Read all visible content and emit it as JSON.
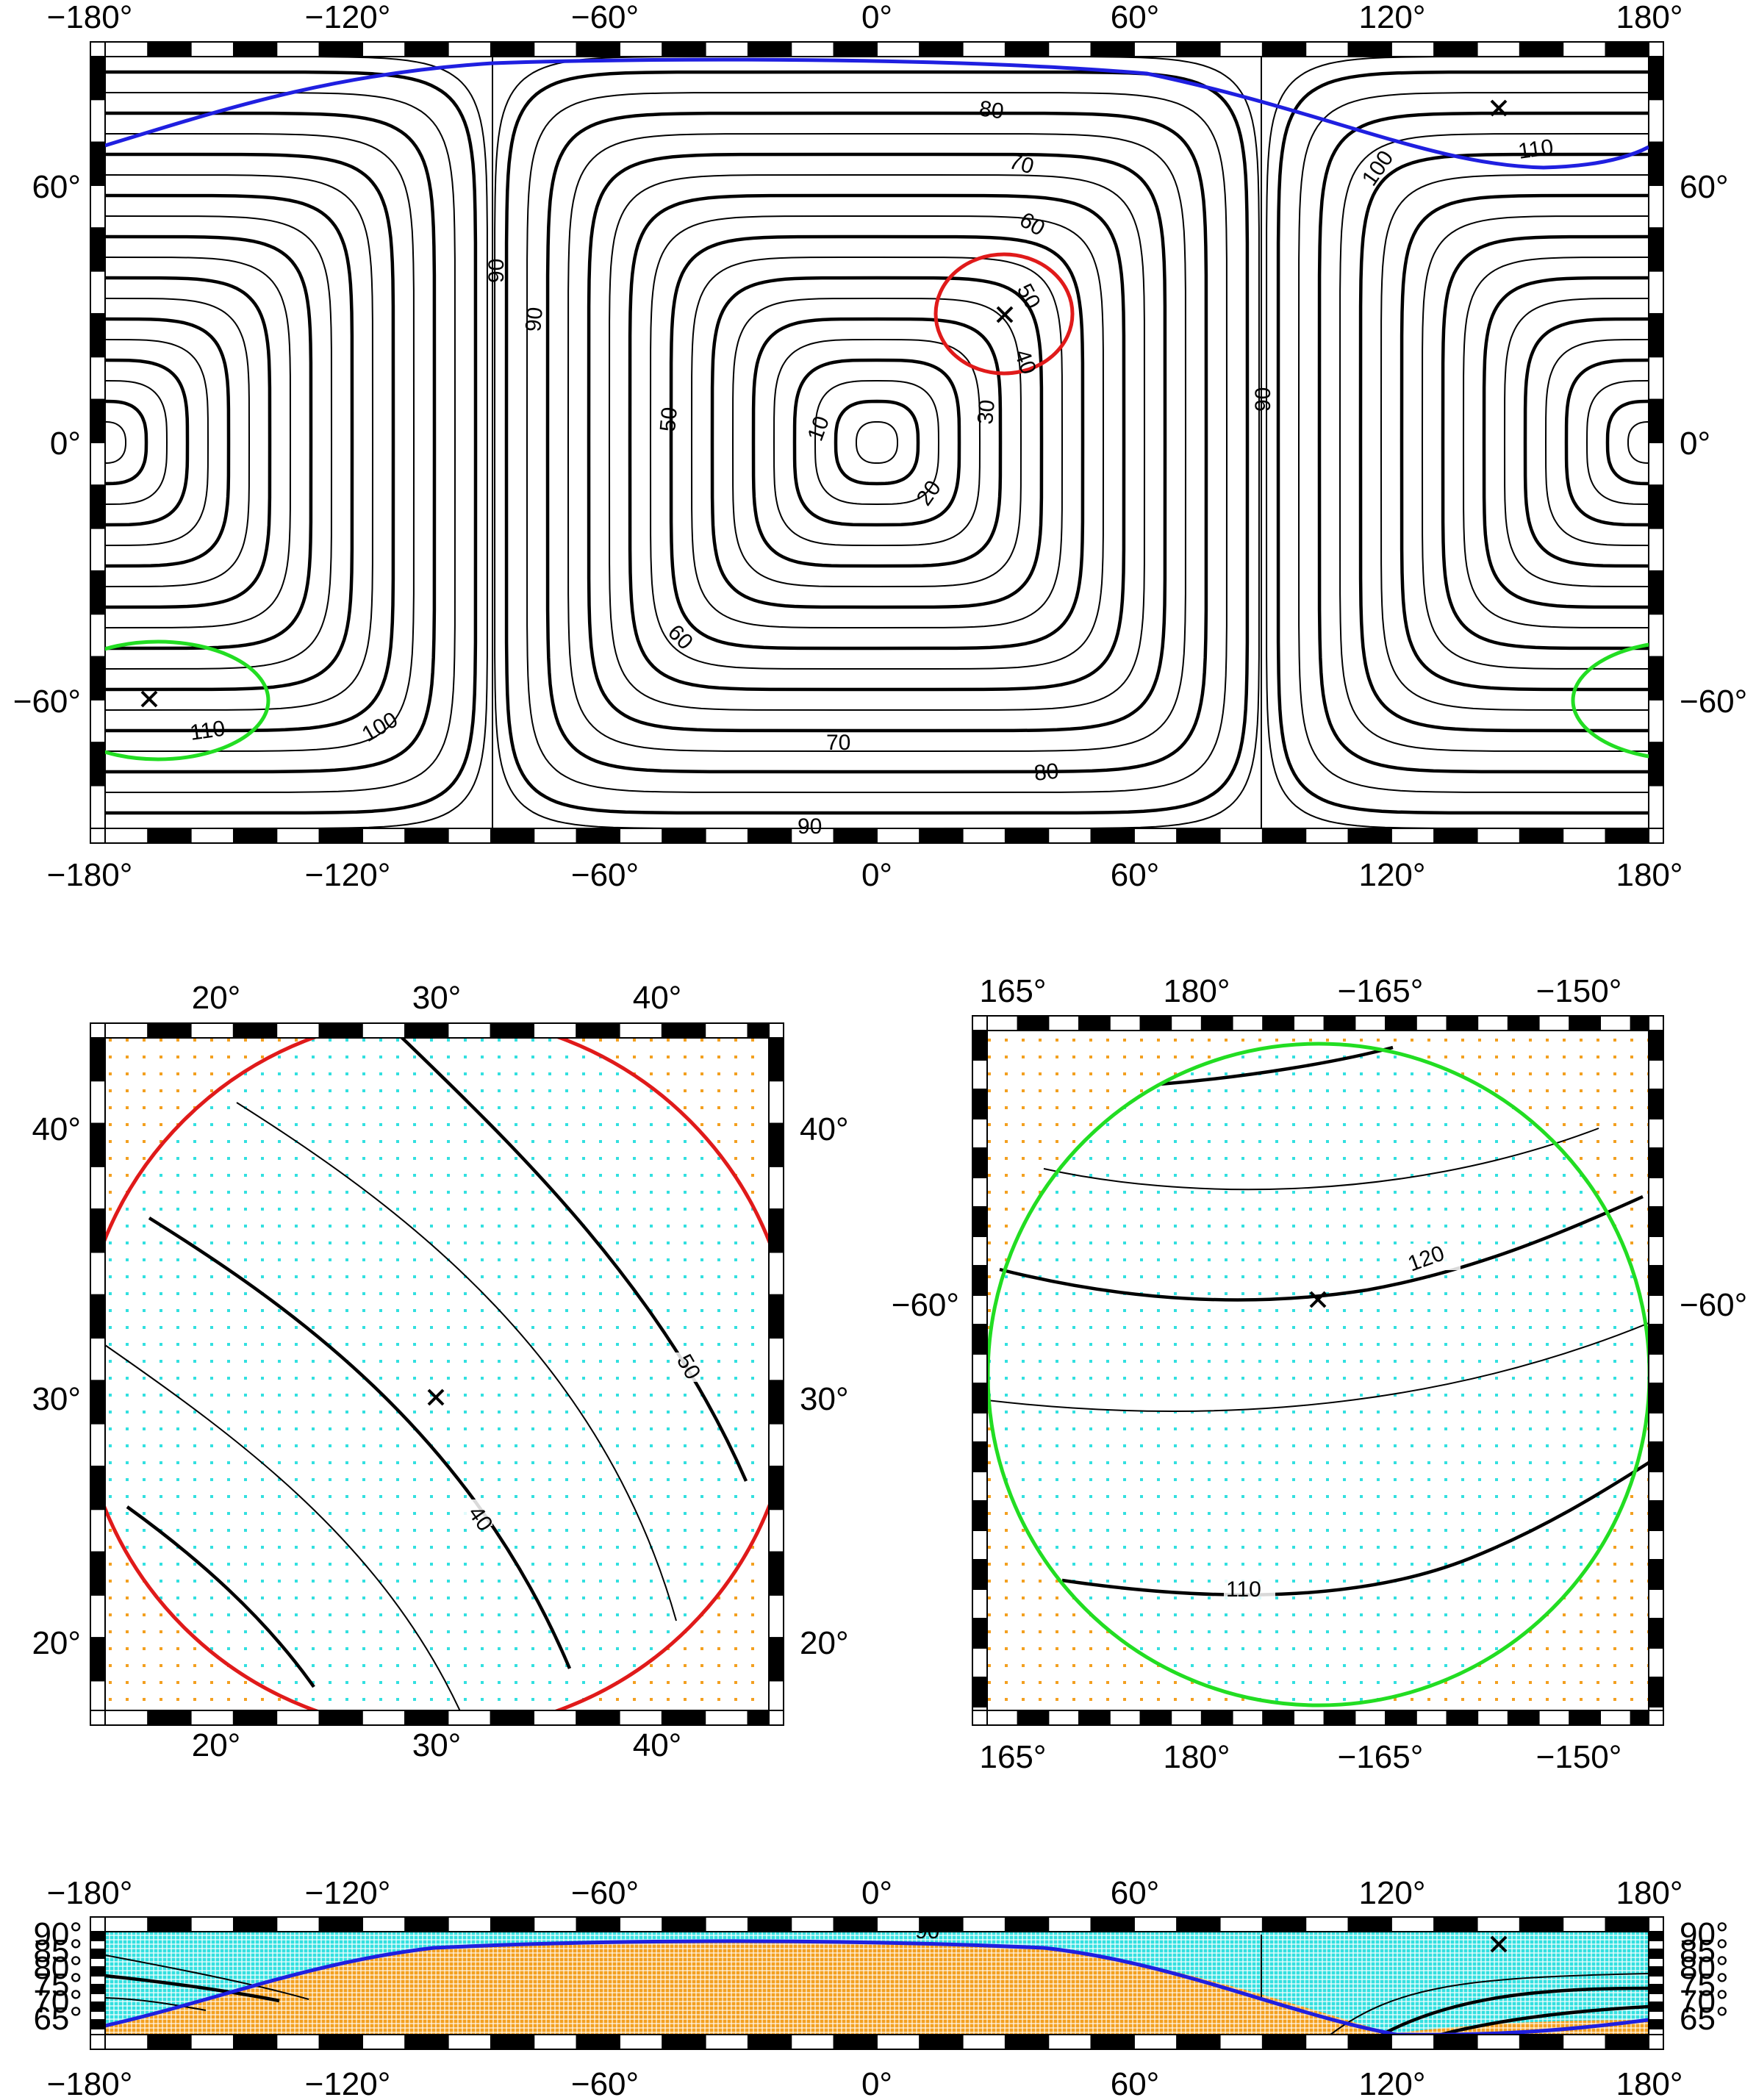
{
  "colors": {
    "great_circle": "#1f1fe0",
    "circle_ne": "#e01a1a",
    "circle_sw": "#22dd22",
    "inside_dots": "#33e0e0",
    "outside_dots": "#f3a020",
    "contour": "#000000",
    "frame": "#000000"
  },
  "panels": {
    "global": {
      "lon_ticks": [
        "−180°",
        "−120°",
        "−60°",
        "0°",
        "60°",
        "120°",
        "180°"
      ],
      "lat_ticks": [
        "60°",
        "0°",
        "−60°"
      ],
      "contour_labels": [
        "10",
        "20",
        "30",
        "40",
        "50",
        "50",
        "60",
        "60",
        "70",
        "70",
        "80",
        "80",
        "90",
        "90",
        "90",
        "90",
        "100",
        "100",
        "110",
        "110"
      ]
    },
    "zoom_ne": {
      "lon_ticks": [
        "20°",
        "30°",
        "40°"
      ],
      "lat_ticks": [
        "40°",
        "30°",
        "20°"
      ],
      "contour_labels": [
        "40",
        "50"
      ]
    },
    "zoom_sw": {
      "lon_ticks": [
        "165°",
        "180°",
        "−165°",
        "−150°"
      ],
      "lat_ticks": [
        "−60°"
      ],
      "contour_labels": [
        "110",
        "120"
      ]
    },
    "strip": {
      "lon_ticks": [
        "−180°",
        "−120°",
        "−60°",
        "0°",
        "60°",
        "120°",
        "180°"
      ],
      "lat_ticks": [
        "90°",
        "85°",
        "80°",
        "75°",
        "70°",
        "65°"
      ],
      "contour_labels": [
        "90"
      ]
    }
  },
  "markers": {
    "ne_center": {
      "lon": 30,
      "lat": 30
    },
    "sw_center": {
      "lon": -172,
      "lat": -60
    },
    "pole_point": {
      "lon": 150,
      "lat": 78
    }
  }
}
